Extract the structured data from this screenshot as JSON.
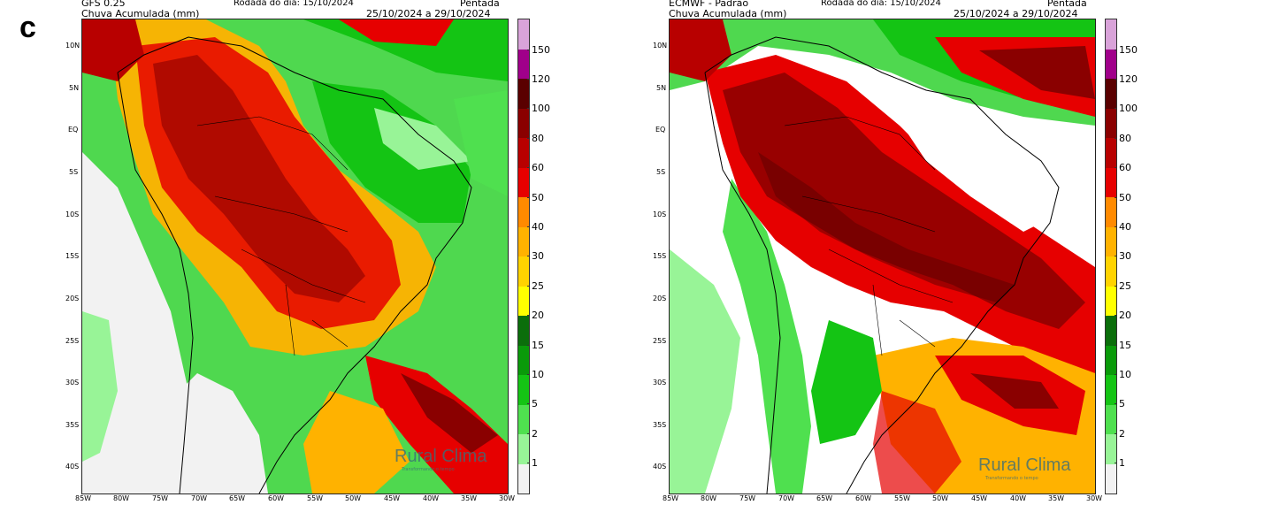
{
  "panel_letter": "c",
  "colorbar": {
    "ticks": [
      "1",
      "2",
      "5",
      "10",
      "15",
      "20",
      "25",
      "30",
      "40",
      "50",
      "60",
      "80",
      "100",
      "120",
      "150"
    ],
    "colors": [
      "#f2f2f2",
      "#98f497",
      "#4fe04f",
      "#14c414",
      "#0a9a0a",
      "#0b6e0b",
      "#ffff00",
      "#ffd300",
      "#ffb200",
      "#ff8a00",
      "#e60000",
      "#b80000",
      "#8a0000",
      "#5a0000",
      "#a0008a",
      "#d9a3d9"
    ]
  },
  "axes": {
    "lat_labels": [
      "10N",
      "5N",
      "EQ",
      "5S",
      "10S",
      "15S",
      "20S",
      "25S",
      "30S",
      "35S",
      "40S"
    ],
    "lon_labels": [
      "85W",
      "80W",
      "75W",
      "70W",
      "65W",
      "60W",
      "55W",
      "50W",
      "45W",
      "40W",
      "35W",
      "30W"
    ]
  },
  "panels": [
    {
      "id": "gfs",
      "model": "GFS 0.25",
      "variable": "Chuva Acumulada (mm)",
      "run": "Rodada do dia: 15/10/2024",
      "period_label": "Pêntada",
      "period": "25/10/2024 a 29/10/2024",
      "logo": "Rural Clima",
      "logo_sub": "Transformando o tempo"
    },
    {
      "id": "ecmwf",
      "model": "ECMWF - Padrão",
      "variable": "Chuva Acumulada (mm)",
      "run": "Rodada do dia: 15/10/2024",
      "period_label": "Pêntada",
      "period": "25/10/2024 a 29/10/2024",
      "logo": "Rural Clima",
      "logo_sub": "Transformando o tempo"
    }
  ]
}
